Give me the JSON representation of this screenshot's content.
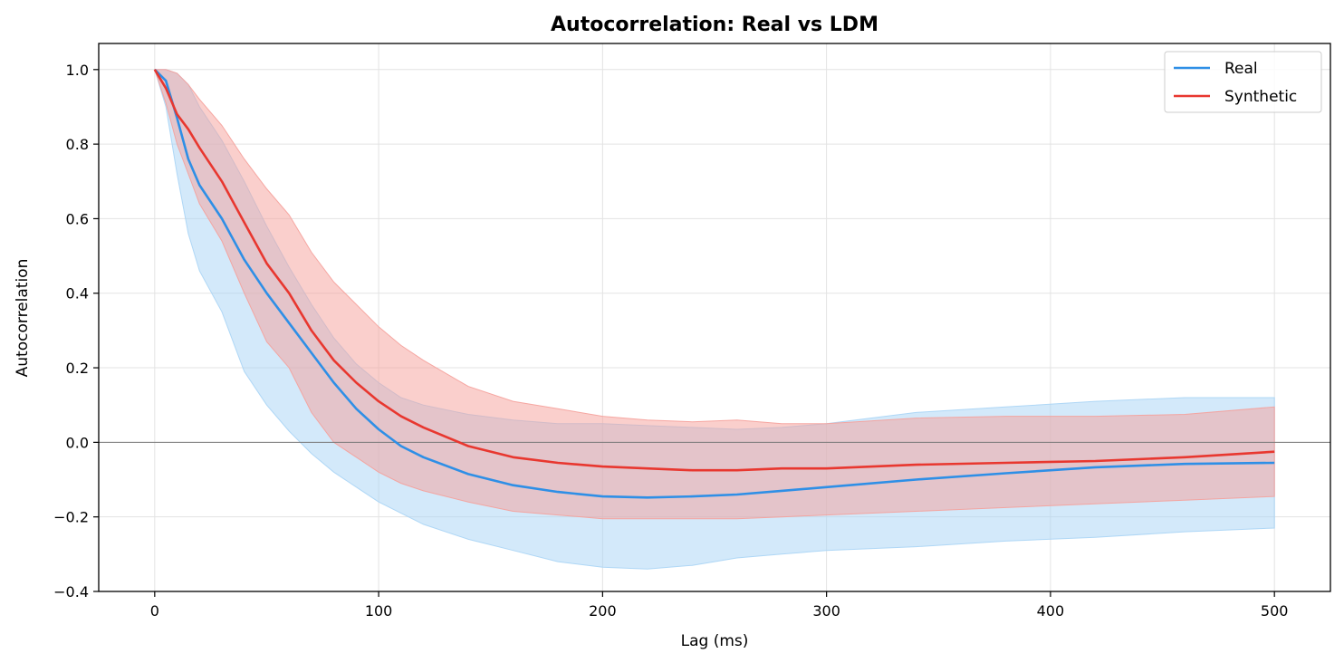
{
  "chart_data": {
    "type": "line",
    "title": "Autocorrelation: Real vs LDM",
    "xlabel": "Lag (ms)",
    "ylabel": "Autocorrelation",
    "xlim": [
      -25,
      525
    ],
    "ylim": [
      -0.4,
      1.07
    ],
    "xticks": [
      0,
      100,
      200,
      300,
      400,
      500
    ],
    "yticks": [
      -0.4,
      -0.2,
      0.0,
      0.2,
      0.4,
      0.6,
      0.8,
      1.0
    ],
    "xtick_labels": [
      "0",
      "100",
      "200",
      "300",
      "400",
      "500"
    ],
    "ytick_labels": [
      "−0.4",
      "−0.2",
      "0.0",
      "0.2",
      "0.4",
      "0.6",
      "0.8",
      "1.0"
    ],
    "grid": true,
    "reference_line_y": 0,
    "legend": {
      "position": "top-right"
    },
    "series": [
      {
        "name": "Real",
        "color": "#2e8fe6",
        "band_color": "#a8d4f5",
        "x": [
          0,
          5,
          10,
          15,
          20,
          30,
          40,
          50,
          60,
          70,
          80,
          90,
          100,
          110,
          120,
          140,
          160,
          180,
          200,
          220,
          240,
          260,
          280,
          300,
          340,
          380,
          420,
          460,
          500
        ],
        "y": [
          1.0,
          0.97,
          0.87,
          0.76,
          0.69,
          0.6,
          0.49,
          0.4,
          0.32,
          0.24,
          0.16,
          0.09,
          0.035,
          -0.01,
          -0.04,
          -0.085,
          -0.115,
          -0.133,
          -0.145,
          -0.148,
          -0.145,
          -0.14,
          -0.13,
          -0.12,
          -0.1,
          -0.083,
          -0.067,
          -0.058,
          -0.055
        ],
        "lower": [
          1.0,
          0.9,
          0.72,
          0.56,
          0.46,
          0.35,
          0.19,
          0.1,
          0.03,
          -0.03,
          -0.08,
          -0.12,
          -0.16,
          -0.19,
          -0.22,
          -0.26,
          -0.29,
          -0.32,
          -0.335,
          -0.34,
          -0.33,
          -0.31,
          -0.3,
          -0.29,
          -0.28,
          -0.265,
          -0.255,
          -0.24,
          -0.23
        ],
        "upper": [
          1.0,
          1.0,
          0.99,
          0.96,
          0.9,
          0.81,
          0.7,
          0.58,
          0.47,
          0.37,
          0.28,
          0.21,
          0.16,
          0.12,
          0.1,
          0.075,
          0.06,
          0.05,
          0.05,
          0.045,
          0.04,
          0.035,
          0.04,
          0.05,
          0.08,
          0.095,
          0.11,
          0.12,
          0.12
        ]
      },
      {
        "name": "Synthetic",
        "color": "#e8372f",
        "band_color": "#f5a09a",
        "x": [
          0,
          5,
          10,
          15,
          20,
          30,
          40,
          50,
          60,
          70,
          80,
          90,
          100,
          110,
          120,
          140,
          160,
          180,
          200,
          220,
          240,
          260,
          280,
          300,
          340,
          380,
          420,
          460,
          500
        ],
        "y": [
          1.0,
          0.95,
          0.88,
          0.84,
          0.79,
          0.7,
          0.59,
          0.48,
          0.4,
          0.3,
          0.22,
          0.16,
          0.11,
          0.07,
          0.04,
          -0.01,
          -0.04,
          -0.055,
          -0.065,
          -0.07,
          -0.075,
          -0.075,
          -0.07,
          -0.07,
          -0.06,
          -0.055,
          -0.05,
          -0.04,
          -0.025
        ],
        "lower": [
          1.0,
          0.91,
          0.8,
          0.72,
          0.64,
          0.54,
          0.4,
          0.27,
          0.2,
          0.08,
          0.0,
          -0.04,
          -0.08,
          -0.11,
          -0.13,
          -0.16,
          -0.185,
          -0.195,
          -0.205,
          -0.205,
          -0.205,
          -0.205,
          -0.2,
          -0.195,
          -0.185,
          -0.175,
          -0.165,
          -0.155,
          -0.145
        ],
        "upper": [
          1.0,
          1.0,
          0.99,
          0.96,
          0.92,
          0.85,
          0.76,
          0.68,
          0.61,
          0.51,
          0.43,
          0.37,
          0.31,
          0.26,
          0.22,
          0.15,
          0.11,
          0.09,
          0.07,
          0.06,
          0.055,
          0.06,
          0.05,
          0.05,
          0.065,
          0.07,
          0.07,
          0.075,
          0.095
        ]
      }
    ]
  }
}
